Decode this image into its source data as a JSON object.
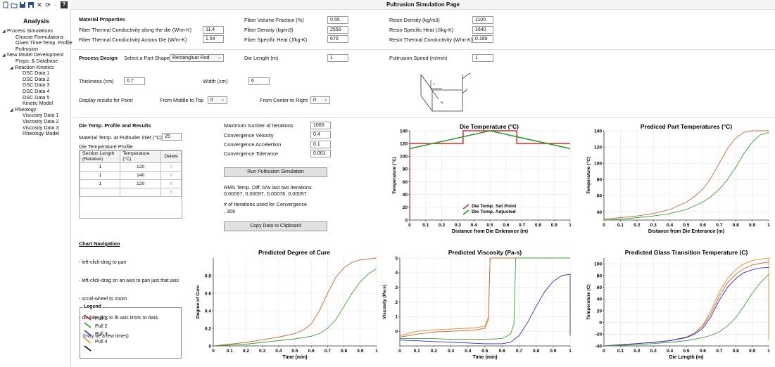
{
  "toolbar": {
    "icons": [
      "new-document-icon",
      "open-document-icon",
      "save-icon",
      "save-as-icon",
      "close-icon",
      "refresh-icon",
      "help-icon"
    ],
    "close_glyph": "✕",
    "refresh_glyph": "⟳",
    "help_glyph": "?"
  },
  "page_title": "Pultrusion Simulation Page",
  "sidebar": {
    "title": "Analysis",
    "items": [
      {
        "label": "Process Simulations",
        "level": 0,
        "toggle": "◢"
      },
      {
        "label": "Choose Formulations",
        "level": 2
      },
      {
        "label": "Given Time-Temp. Profile",
        "level": 2
      },
      {
        "label": "Pultrusion",
        "level": 2
      },
      {
        "label": "New Model Development",
        "level": 0,
        "toggle": "◢"
      },
      {
        "label": "Props. & Database",
        "level": 2
      },
      {
        "label": "Reaction Kinetics",
        "level": 1,
        "toggle": "◢"
      },
      {
        "label": "DSC Data 1",
        "level": 3
      },
      {
        "label": "DSC Data 2",
        "level": 3
      },
      {
        "label": "DSC Data 3",
        "level": 3
      },
      {
        "label": "DSC Data 4",
        "level": 3
      },
      {
        "label": "DSC Data 5",
        "level": 3
      },
      {
        "label": "Kinetic Model",
        "level": 3
      },
      {
        "label": "Rheology",
        "level": 1,
        "toggle": "◢"
      },
      {
        "label": "Viscosity Data 1",
        "level": 3
      },
      {
        "label": "Viscosity Data 2",
        "level": 3
      },
      {
        "label": "Viscosity Data 3",
        "level": 3
      },
      {
        "label": "Rheology Model",
        "level": 3
      }
    ]
  },
  "material": {
    "heading": "Material Properties",
    "fiber_k_along_label": "Fiber Thermal Conductivity along the die (W/m-K)",
    "fiber_k_along": "11.4",
    "fiber_k_across_label": "Fiber Thermal Conductivity Acroos Die (W/m-K)",
    "fiber_k_across": "1.54",
    "fiber_vf_label": "Fiber Volume Fraction (%)",
    "fiber_vf": "0.55",
    "fiber_density_label": "Fiber Density (kg/m3)",
    "fiber_density": "2550",
    "fiber_cp_label": "Fiber Specific Heat (J/kg-K)",
    "fiber_cp": "670",
    "resin_density_label": "Resin Density (kg/m3)",
    "resin_density": "1100",
    "resin_cp_label": "Resin Specific Heat (J/kg-K)",
    "resin_cp": "1640",
    "resin_k_label": "Resin Thermal Conductivity (W/m-K)",
    "resin_k": "0.169"
  },
  "process": {
    "heading": "Process Design",
    "shape_label": "Select a Part Shape",
    "shape": "Rectangluar Rod",
    "die_length_label": "Die Length (m)",
    "die_length": "1",
    "speed_label": "Pultrusion Speed (m/min)",
    "speed": "1",
    "thickness_label": "Thickness (cm)",
    "thickness": "0.7",
    "width_label": "Width (cm)",
    "width": "6",
    "display_label": "Display results for Point",
    "mid_top_label": "From Middle to Top",
    "mid_top": "0",
    "center_right_label": "From Center to Right",
    "center_right": "0",
    "diagram_labels": [
      "t",
      "w"
    ]
  },
  "die_profile": {
    "heading": "Die Temp. Profile and Results",
    "inlet_label": "Material Temp. at Pultruder inlet (°C)",
    "inlet": "25",
    "profile_label": "Die Temperature Profile",
    "columns": [
      "Section Length (Relative)",
      "Temperature (°C)",
      "Delete"
    ],
    "rows": [
      [
        "1",
        "120",
        "X"
      ],
      [
        "1",
        "140",
        "X"
      ],
      [
        "1",
        "120",
        "X"
      ],
      [
        "",
        "",
        "X"
      ]
    ]
  },
  "solver": {
    "max_iter_label": "Maximum number of Iterations",
    "max_iter": "1000",
    "conv_vel_label": "Convergence Velocity",
    "conv_vel": "0.4",
    "conv_acc_label": "Convergence Accelertion",
    "conv_acc": "0.1",
    "conv_tol_label": "Convergence Tolerance",
    "conv_tol": "0.001",
    "run_button": "Run Pultrusion Simulation",
    "rms_label": "RMS Temp. Diff. b/w last two iterations",
    "rms_values": "0.00097, 0.00097, 0.00078, 0.00097",
    "iters_label": "# of Iterations used for Convergence",
    "iters_value": ", 306",
    "copy_button": "Copy Data to Clipboard"
  },
  "navigation": {
    "heading": "Chart Navigation",
    "lines": [
      "- left-click-drag to pan",
      "- left-click-drag on an axis to pan just that axis",
      "- scroll-wheel to zoom",
      "- double-click to fit axis limits to data",
      "   (may be a few times)"
    ]
  },
  "legend": {
    "title": "Legend",
    "entries": [
      {
        "label": "Pull 1",
        "color": "#e8292b"
      },
      {
        "label": "Pull 2",
        "color": "#1f9a2a"
      },
      {
        "label": "Pull 3",
        "color": "#2b2bd8"
      },
      {
        "label": "Pull 4",
        "color": "#f28b1b"
      },
      {
        "label": "",
        "color": "#000000"
      }
    ]
  },
  "chart_data": [
    {
      "id": "die-temp",
      "type": "line",
      "title": "Die Temperature  (°C)",
      "xlabel": "Distance from Die Enterance (m)",
      "ylabel": "Temperature (°C)",
      "xlim": [
        0,
        1
      ],
      "ylim": [
        0,
        140
      ],
      "xticks": [
        "0",
        "0.1",
        "0.2",
        "0.3",
        "0.4",
        "0.5",
        "0.6",
        "0.7",
        "0.8",
        "0.9",
        "1"
      ],
      "xtick_values": [
        0,
        0.1,
        0.2,
        0.3,
        0.4,
        0.5,
        0.6,
        0.7,
        0.8,
        0.9,
        1
      ],
      "yticks": [
        "0",
        "20",
        "40",
        "60",
        "80",
        "100",
        "120",
        "140"
      ],
      "ytick_values": [
        0,
        20,
        40,
        60,
        80,
        100,
        120,
        140
      ],
      "legend": [
        "Die Temp. Set Point",
        "Die Temp. Adjusted"
      ],
      "series": [
        {
          "name": "Die Temp. Set Point",
          "color": "#e8292b",
          "x": [
            0,
            0,
            0.333,
            0.333,
            0.667,
            0.667,
            1
          ],
          "y": [
            0,
            120,
            120,
            140,
            140,
            120,
            120
          ]
        },
        {
          "name": "Die Temp. Adjusted",
          "color": "#1f9a2a",
          "x": [
            0,
            0.5,
            1
          ],
          "y": [
            112,
            140,
            112
          ]
        }
      ]
    },
    {
      "id": "part-temp",
      "type": "line",
      "title": "Prediced Part Temperatures (°C)",
      "xlabel": "Distance from Die Enterance (m)",
      "ylabel": "Temperature (°C)",
      "xlim": [
        0,
        1
      ],
      "ylim": [
        30,
        140
      ],
      "xticks": [
        "0",
        "0.1",
        "0.2",
        "0.3",
        "0.4",
        "0.5",
        "0.6",
        "0.7",
        "0.8",
        "0.9",
        "1"
      ],
      "xtick_values": [
        0,
        0.1,
        0.2,
        0.3,
        0.4,
        0.5,
        0.6,
        0.7,
        0.8,
        0.9,
        1
      ],
      "yticks": [
        "40",
        "60",
        "80",
        "100",
        "120",
        "140"
      ],
      "ytick_values": [
        40,
        60,
        80,
        100,
        120,
        140
      ],
      "series": [
        {
          "color": "#c8643c",
          "x": [
            0,
            0.1,
            0.2,
            0.3,
            0.4,
            0.5,
            0.55,
            0.6,
            0.65,
            0.7,
            0.75,
            0.8,
            0.85,
            0.9,
            1
          ],
          "y": [
            31,
            33,
            35,
            38,
            43,
            52,
            59,
            68,
            82,
            100,
            118,
            131,
            138,
            140,
            140
          ]
        },
        {
          "color": "#3aa13a",
          "x": [
            0,
            0.1,
            0.2,
            0.3,
            0.4,
            0.5,
            0.6,
            0.65,
            0.7,
            0.75,
            0.8,
            0.85,
            0.9,
            0.95,
            1
          ],
          "y": [
            30,
            31,
            33,
            35,
            38,
            43,
            52,
            59,
            68,
            80,
            95,
            112,
            126,
            135,
            138
          ]
        }
      ]
    },
    {
      "id": "cure",
      "type": "line",
      "title": "Predicted Degree of Cure",
      "xlabel": "Time (min)",
      "ylabel": "Degree of Cure",
      "xlim": [
        0,
        1
      ],
      "ylim": [
        0,
        1
      ],
      "xticks": [
        "0",
        "0.1",
        "0.2",
        "0.3",
        "0.4",
        "0.5",
        "0.6",
        "0.7",
        "0.8",
        "0.9",
        "1"
      ],
      "xtick_values": [
        0,
        0.1,
        0.2,
        0.3,
        0.4,
        0.5,
        0.6,
        0.7,
        0.8,
        0.9,
        1
      ],
      "yticks": [
        "0",
        "0.2",
        "0.4",
        "0.6",
        "0.8"
      ],
      "ytick_values": [
        0,
        0.2,
        0.4,
        0.6,
        0.8
      ],
      "series": [
        {
          "color": "#c8643c",
          "x": [
            0,
            0.1,
            0.2,
            0.3,
            0.4,
            0.5,
            0.55,
            0.6,
            0.65,
            0.7,
            0.75,
            0.8,
            0.85,
            0.9,
            0.95,
            1
          ],
          "y": [
            0,
            0.02,
            0.04,
            0.07,
            0.1,
            0.14,
            0.18,
            0.25,
            0.4,
            0.6,
            0.78,
            0.89,
            0.95,
            0.98,
            0.99,
            1.0
          ]
        },
        {
          "color": "#3aa13a",
          "x": [
            0,
            0.1,
            0.2,
            0.3,
            0.4,
            0.5,
            0.6,
            0.65,
            0.7,
            0.75,
            0.8,
            0.85,
            0.9,
            0.95,
            1
          ],
          "y": [
            0,
            0.01,
            0.02,
            0.04,
            0.06,
            0.08,
            0.11,
            0.14,
            0.2,
            0.3,
            0.45,
            0.6,
            0.73,
            0.82,
            0.88
          ]
        }
      ]
    },
    {
      "id": "viscosity",
      "type": "line",
      "title": "Predicted Viscosity (Pa-s)",
      "xlabel": "Time (min)",
      "ylabel": "Viscosity (Pa-s)",
      "xlim": [
        0,
        1
      ],
      "ylim": [
        -1,
        5
      ],
      "xticks": [
        "0",
        "0.1",
        "0.2",
        "0.3",
        "0.4",
        "0.5",
        "0.6",
        "0.7",
        "0.8",
        "0.9",
        "1"
      ],
      "xtick_values": [
        0,
        0.1,
        0.2,
        0.3,
        0.4,
        0.5,
        0.6,
        0.7,
        0.8,
        0.9,
        1
      ],
      "yticks": [
        "0",
        "1",
        "2",
        "3",
        "4",
        "5"
      ],
      "ytick_values": [
        0,
        1,
        2,
        3,
        4,
        5
      ],
      "series": [
        {
          "color": "#f28b1b",
          "x": [
            0,
            0.1,
            0.2,
            0.3,
            0.4,
            0.45,
            0.5,
            0.52,
            0.53,
            0.55,
            1
          ],
          "y": [
            -0.3,
            0.0,
            0.1,
            0.15,
            0.2,
            0.25,
            0.35,
            1.0,
            5,
            5,
            5
          ]
        },
        {
          "color": "#c8643c",
          "x": [
            0,
            0.1,
            0.2,
            0.3,
            0.4,
            0.45,
            0.5,
            0.52,
            0.53,
            0.55,
            1
          ],
          "y": [
            -0.4,
            -0.2,
            -0.05,
            0.0,
            0.05,
            0.1,
            0.2,
            0.8,
            5,
            5,
            5
          ]
        },
        {
          "color": "#3aa13a",
          "x": [
            0,
            0.1,
            0.2,
            0.3,
            0.4,
            0.5,
            0.6,
            0.65,
            0.67,
            0.68,
            0.7,
            1
          ],
          "y": [
            -0.5,
            -0.5,
            -0.5,
            -0.55,
            -0.55,
            -0.55,
            -0.5,
            -0.2,
            0.5,
            5,
            5,
            5
          ]
        },
        {
          "color": "#2b2bd8",
          "x": [
            0,
            0.1,
            0.2,
            0.3,
            0.4,
            0.5,
            0.6,
            0.65,
            0.7,
            0.75,
            0.8,
            0.85,
            0.9,
            0.95,
            1,
            1
          ],
          "y": [
            -0.6,
            -0.65,
            -0.7,
            -0.75,
            -0.8,
            -0.85,
            -0.85,
            -0.75,
            -0.3,
            0.6,
            1.7,
            2.7,
            3.4,
            3.8,
            3.9,
            -0.3
          ]
        }
      ]
    },
    {
      "id": "glass-transition",
      "type": "line",
      "title": "Predicted Glass Transition Temperature (C)",
      "xlabel": "Die Length (m)",
      "ylabel": "Temperature (C)",
      "xlim": [
        0,
        1
      ],
      "ylim": [
        -40,
        110
      ],
      "xticks": [
        "0",
        "0.1",
        "0.2",
        "0.3",
        "0.4",
        "0.5",
        "0.6",
        "0.7",
        "0.8",
        "0.9",
        "1"
      ],
      "xtick_values": [
        0,
        0.1,
        0.2,
        0.3,
        0.4,
        0.5,
        0.6,
        0.7,
        0.8,
        0.9,
        1
      ],
      "yticks": [
        "-40",
        "-20",
        "0",
        "20",
        "40",
        "60",
        "80",
        "100"
      ],
      "ytick_values": [
        -40,
        -20,
        0,
        20,
        40,
        60,
        80,
        100
      ],
      "series": [
        {
          "color": "#f28b1b",
          "x": [
            0,
            0.1,
            0.2,
            0.3,
            0.4,
            0.5,
            0.55,
            0.6,
            0.65,
            0.7,
            0.75,
            0.8,
            0.85,
            0.9,
            0.95,
            1,
            1
          ],
          "y": [
            -40,
            -38,
            -36,
            -34,
            -31,
            -25,
            -18,
            -5,
            20,
            52,
            75,
            90,
            100,
            106,
            108,
            110,
            -30
          ]
        },
        {
          "color": "#c8643c",
          "x": [
            0,
            0.1,
            0.2,
            0.3,
            0.4,
            0.5,
            0.55,
            0.6,
            0.65,
            0.7,
            0.75,
            0.8,
            0.85,
            0.9,
            0.95,
            1
          ],
          "y": [
            -40,
            -38,
            -36,
            -34,
            -31,
            -25,
            -18,
            -6,
            15,
            45,
            68,
            82,
            92,
            98,
            101,
            103
          ]
        },
        {
          "color": "#2b2bd8",
          "x": [
            0,
            0.1,
            0.2,
            0.3,
            0.4,
            0.5,
            0.55,
            0.6,
            0.65,
            0.7,
            0.75,
            0.8,
            0.85,
            0.9,
            0.95,
            1
          ],
          "y": [
            -40,
            -38,
            -36,
            -34,
            -31,
            -26,
            -20,
            -10,
            10,
            38,
            60,
            75,
            85,
            90,
            93,
            94
          ]
        },
        {
          "color": "#3aa13a",
          "x": [
            0,
            0.1,
            0.2,
            0.3,
            0.4,
            0.5,
            0.6,
            0.65,
            0.7,
            0.75,
            0.8,
            0.85,
            0.9,
            0.95,
            1
          ],
          "y": [
            -40,
            -39,
            -38,
            -36,
            -34,
            -31,
            -26,
            -22,
            -16,
            -6,
            8,
            28,
            50,
            68,
            82
          ]
        }
      ]
    }
  ]
}
